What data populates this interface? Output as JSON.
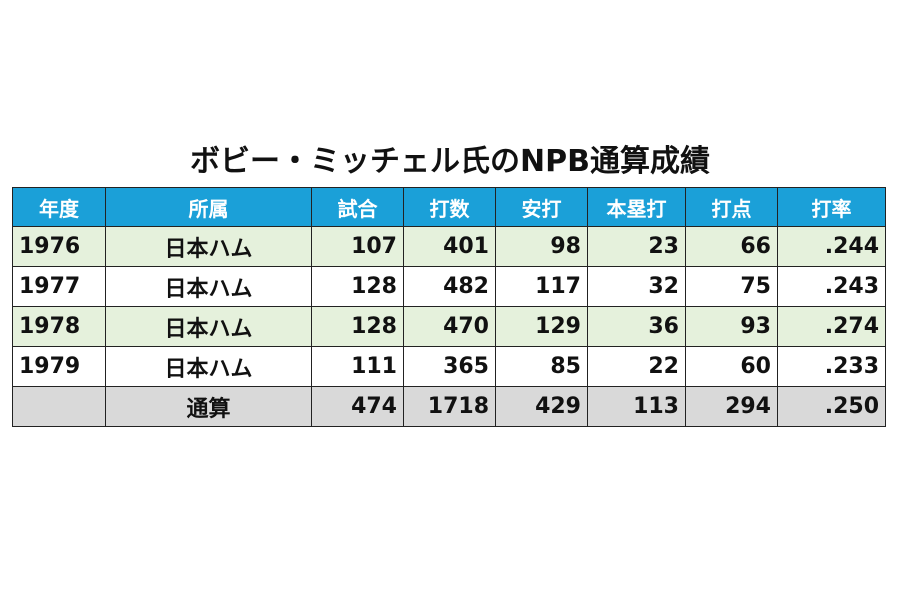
{
  "title": "ボビー・ミッチェル氏のNPB通算成績",
  "colors": {
    "header_bg": "#1ba0d8",
    "header_text": "#ffffff",
    "row_green": "#e5f1dc",
    "row_white": "#ffffff",
    "row_total": "#d9d9d9"
  },
  "table": {
    "headers": [
      "年度",
      "所属",
      "試合",
      "打数",
      "安打",
      "本塁打",
      "打点",
      "打率"
    ],
    "rows": [
      {
        "year": "1976",
        "team": "日本ハム",
        "games": "107",
        "at_bats": "401",
        "hits": "98",
        "home_runs": "23",
        "rbi": "66",
        "avg": ".244"
      },
      {
        "year": "1977",
        "team": "日本ハム",
        "games": "128",
        "at_bats": "482",
        "hits": "117",
        "home_runs": "32",
        "rbi": "75",
        "avg": ".243"
      },
      {
        "year": "1978",
        "team": "日本ハム",
        "games": "128",
        "at_bats": "470",
        "hits": "129",
        "home_runs": "36",
        "rbi": "93",
        "avg": ".274"
      },
      {
        "year": "1979",
        "team": "日本ハム",
        "games": "111",
        "at_bats": "365",
        "hits": "85",
        "home_runs": "22",
        "rbi": "60",
        "avg": ".233"
      }
    ],
    "total": {
      "year": "",
      "label": "通算",
      "games": "474",
      "at_bats": "1718",
      "hits": "429",
      "home_runs": "113",
      "rbi": "294",
      "avg": ".250"
    }
  }
}
